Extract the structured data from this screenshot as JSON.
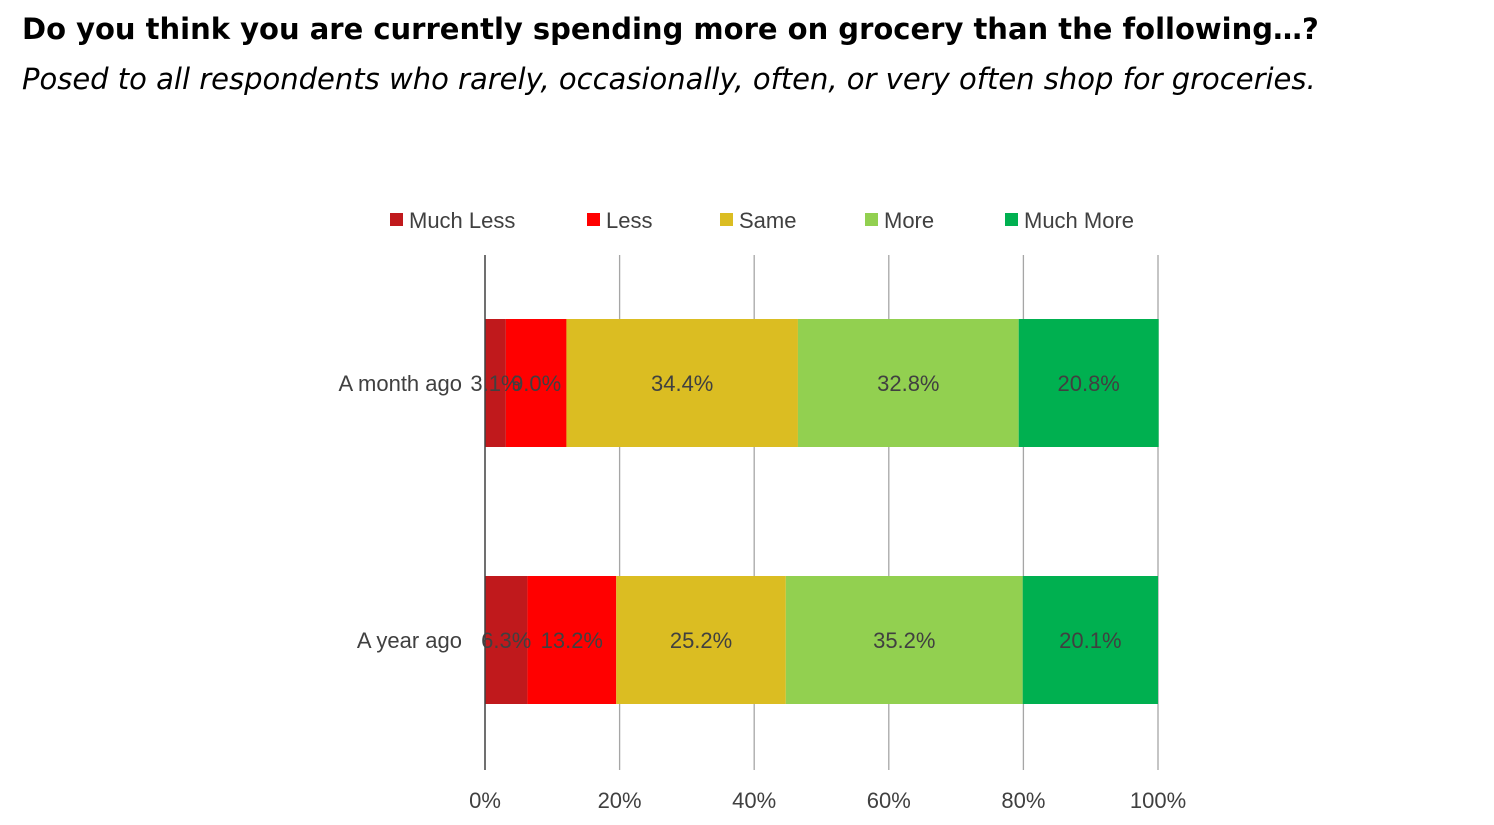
{
  "title": "Do you think you are currently spending more on grocery than the following…?",
  "subtitle": "Posed to all respondents who rarely, occasionally, often, or very often shop for groceries.",
  "chart_data": {
    "type": "bar",
    "orientation": "horizontal",
    "stacked": "percent",
    "categories": [
      "A month ago",
      "A year ago"
    ],
    "series": [
      {
        "name": "Much Less",
        "color": "#c0191c",
        "values": [
          3.1,
          6.3
        ]
      },
      {
        "name": "Less",
        "color": "#ff0000",
        "values": [
          9.0,
          13.2
        ]
      },
      {
        "name": "Same",
        "color": "#dbbd22",
        "values": [
          34.4,
          25.2
        ]
      },
      {
        "name": "More",
        "color": "#92d050",
        "values": [
          32.8,
          35.2
        ]
      },
      {
        "name": "Much More",
        "color": "#00b050",
        "values": [
          20.8,
          20.1
        ]
      }
    ],
    "data_labels": [
      [
        "3.1%",
        "9.0%",
        "34.4%",
        "32.8%",
        "20.8%"
      ],
      [
        "6.3%",
        "13.2%",
        "25.2%",
        "35.2%",
        "20.1%"
      ]
    ],
    "x_ticks": [
      "0%",
      "20%",
      "40%",
      "60%",
      "80%",
      "100%"
    ],
    "xlim": [
      0,
      100
    ],
    "grid": true,
    "legend_position": "top"
  }
}
